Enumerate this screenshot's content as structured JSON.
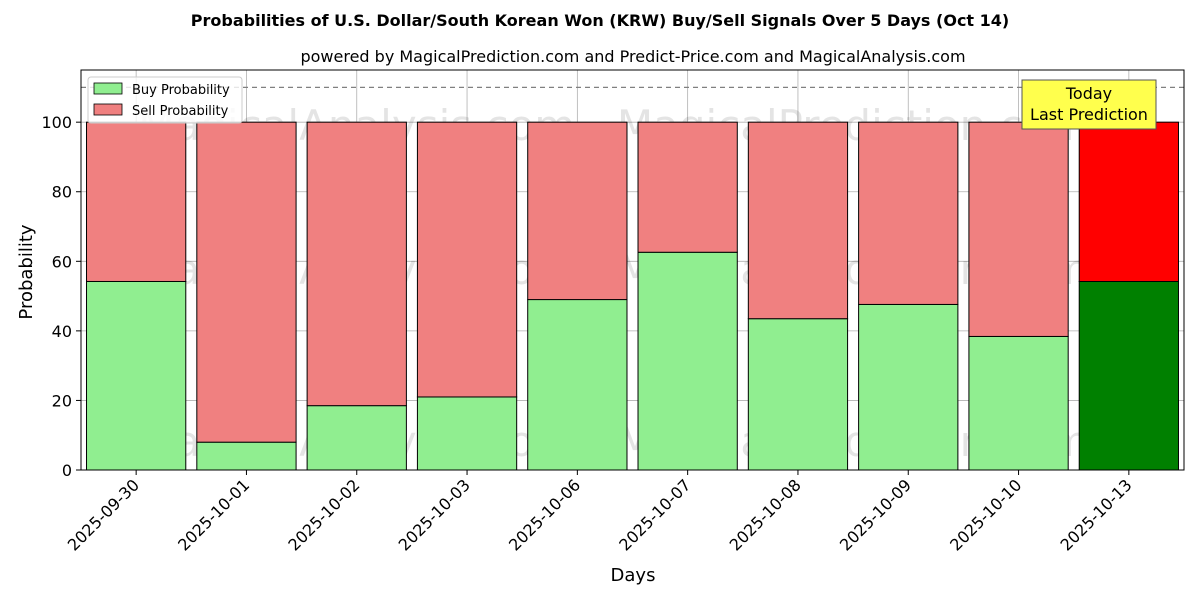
{
  "chart_data": {
    "type": "bar",
    "stacked": true,
    "title": "Probabilities of U.S. Dollar/South Korean Won (KRW) Buy/Sell Signals Over 5 Days (Oct 14)",
    "subtitle": "powered by MagicalPrediction.com and Predict-Price.com and MagicalAnalysis.com",
    "xlabel": "Days",
    "ylabel": "Probability",
    "ylim": [
      0,
      115
    ],
    "yticks": [
      0,
      20,
      40,
      60,
      80,
      100
    ],
    "grid": true,
    "legend_position": "top-left",
    "reference_line": 110,
    "categories": [
      "2025-09-30",
      "2025-10-01",
      "2025-10-02",
      "2025-10-03",
      "2025-10-06",
      "2025-10-07",
      "2025-10-08",
      "2025-10-09",
      "2025-10-10",
      "2025-10-13"
    ],
    "series": [
      {
        "name": "Buy Probability",
        "color": "#90ee90",
        "highlight_color": "#008000",
        "values": [
          54.2,
          8.0,
          18.5,
          21.0,
          49.0,
          62.6,
          43.5,
          47.6,
          38.4,
          54.2
        ]
      },
      {
        "name": "Sell Probability",
        "color": "#f08080",
        "highlight_color": "#ff0000",
        "values": [
          45.8,
          92.0,
          81.5,
          79.0,
          51.0,
          37.4,
          56.5,
          52.4,
          61.6,
          45.8
        ]
      }
    ],
    "highlight_index": 9,
    "annotation": {
      "line1": "Today",
      "line2": "Last Prediction",
      "background": "#ffff4d"
    },
    "watermarks": [
      "MagicalAnalysis.com",
      "MagicalPrediction.com"
    ]
  }
}
